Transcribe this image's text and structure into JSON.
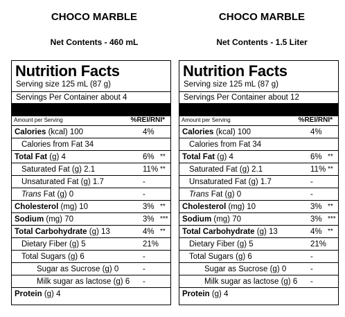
{
  "panels": [
    {
      "product": "CHOCO MARBLE",
      "net_contents": "Net Contents - 460 mL",
      "title": "Nutrition Facts",
      "serving_size": "Serving size   125 mL  (87 g)",
      "servings_per_container": "Servings Per Container   about 4",
      "amount_per_serving": "Amount per Serving",
      "rei_header": "%REI/RNI*",
      "rows": [
        {
          "pre": "",
          "bold": "Calories",
          "post": " (kcal)  100",
          "pct": "4%",
          "star": ""
        },
        {
          "pre": "Calories from Fat  34",
          "bold": "",
          "post": "",
          "pct": "",
          "star": ""
        },
        {
          "pre": "",
          "bold": "Total Fat",
          "post": "  (g)  4",
          "pct": "6%",
          "star": "**"
        },
        {
          "pre": "Saturated Fat  (g)  2.1",
          "bold": "",
          "post": "",
          "pct": "11%",
          "star": "**"
        },
        {
          "pre": "Unsaturated Fat  (g)  1.7",
          "bold": "",
          "post": "",
          "pct": "-",
          "star": ""
        },
        {
          "italic": "Trans",
          "pre": " Fat  (g)  0",
          "bold": "",
          "post": "",
          "pct": "-",
          "star": ""
        },
        {
          "pre": "",
          "bold": "Cholesterol",
          "post": "  (mg)  10",
          "pct": "3%",
          "star": "**"
        },
        {
          "pre": "",
          "bold": "Sodium",
          "post": "  (mg)  70",
          "pct": "3%",
          "star": "***"
        },
        {
          "pre": "",
          "bold": "Total Carbohydrate",
          "post": "  (g)  13",
          "pct": "4%",
          "star": "**"
        },
        {
          "pre": "Dietary Fiber  (g)  5",
          "bold": "",
          "post": "",
          "pct": "21%",
          "star": ""
        },
        {
          "pre": "Total Sugars  (g)  6",
          "bold": "",
          "post": "",
          "pct": "-",
          "star": ""
        },
        {
          "pre": "Sugar as Sucrose  (g)   0",
          "bold": "",
          "post": "",
          "pct": "-",
          "star": ""
        },
        {
          "pre": "Milk sugar as lactose  (g)  6",
          "bold": "",
          "post": "",
          "pct": "-",
          "star": ""
        },
        {
          "pre": "",
          "bold": "Protein",
          "post": "  (g)  4",
          "pct": "",
          "star": ""
        }
      ]
    },
    {
      "product": "CHOCO MARBLE",
      "net_contents": "Net Contents - 1.5 Liter",
      "title": "Nutrition Facts",
      "serving_size": "Serving size   125 mL  (87 g)",
      "servings_per_container": "Servings Per Container   about 12",
      "amount_per_serving": "Amount per Serving",
      "rei_header": "%REI/RNI*",
      "rows": [
        {
          "pre": "",
          "bold": "Calories",
          "post": " (kcal)  100",
          "pct": "4%",
          "star": ""
        },
        {
          "pre": "Calories from Fat  34",
          "bold": "",
          "post": "",
          "pct": "",
          "star": ""
        },
        {
          "pre": "",
          "bold": "Total Fat",
          "post": "  (g)  4",
          "pct": "6%",
          "star": "**"
        },
        {
          "pre": "Saturated Fat  (g)  2.1",
          "bold": "",
          "post": "",
          "pct": "11%",
          "star": "**"
        },
        {
          "pre": "Unsaturated Fat  (g)  1.7",
          "bold": "",
          "post": "",
          "pct": "-",
          "star": ""
        },
        {
          "italic": "Trans",
          "pre": " Fat  (g)  0",
          "bold": "",
          "post": "",
          "pct": "-",
          "star": ""
        },
        {
          "pre": "",
          "bold": "Cholesterol",
          "post": "  (mg)  10",
          "pct": "3%",
          "star": "**"
        },
        {
          "pre": "",
          "bold": "Sodium",
          "post": "  (mg)  70",
          "pct": "3%",
          "star": "***"
        },
        {
          "pre": "",
          "bold": "Total Carbohydrate",
          "post": "  (g)  13",
          "pct": "4%",
          "star": "**"
        },
        {
          "pre": "Dietary Fiber  (g)  5",
          "bold": "",
          "post": "",
          "pct": "21%",
          "star": ""
        },
        {
          "pre": "Total Sugars  (g)  6",
          "bold": "",
          "post": "",
          "pct": "-",
          "star": ""
        },
        {
          "pre": "Sugar as Sucrose  (g)   0",
          "bold": "",
          "post": "",
          "pct": "-",
          "star": ""
        },
        {
          "pre": "Milk sugar as lactose  (g)  6",
          "bold": "",
          "post": "",
          "pct": "-",
          "star": ""
        },
        {
          "pre": "",
          "bold": "Protein",
          "post": "  (g)  4",
          "pct": "",
          "star": ""
        }
      ]
    }
  ]
}
